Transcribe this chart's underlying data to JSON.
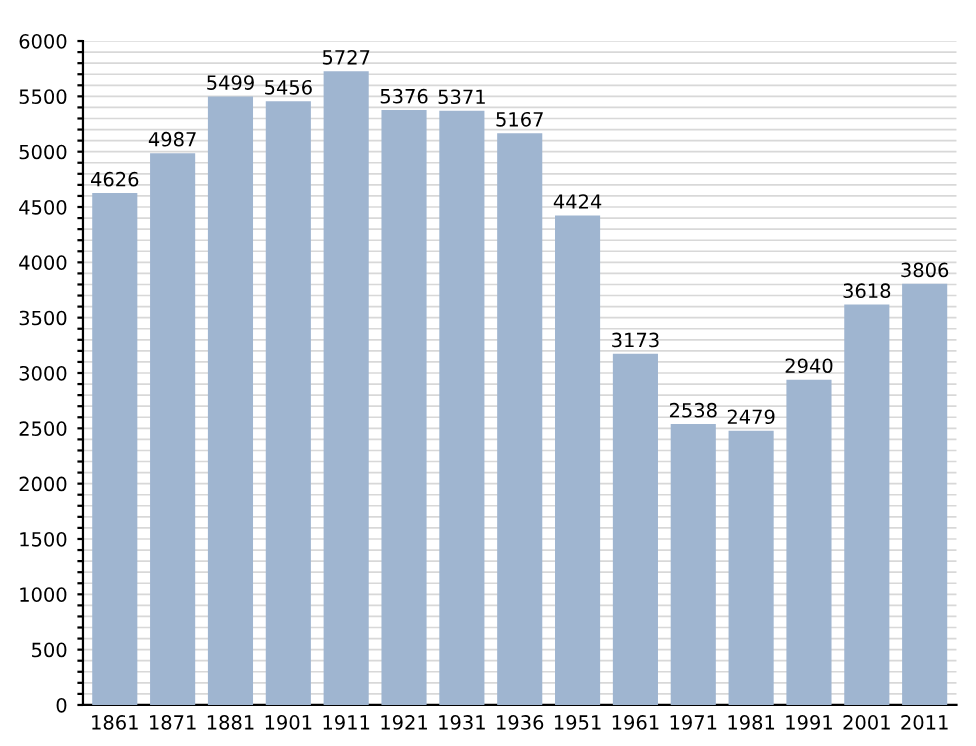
{
  "chart_data": {
    "type": "bar",
    "categories": [
      "1861",
      "1871",
      "1881",
      "1901",
      "1911",
      "1921",
      "1931",
      "1936",
      "1951",
      "1961",
      "1971",
      "1981",
      "1991",
      "2001",
      "2011"
    ],
    "values": [
      4626,
      4987,
      5499,
      5456,
      5727,
      5376,
      5371,
      5167,
      4424,
      3173,
      2538,
      2479,
      2940,
      3618,
      3806
    ],
    "color": "#9fb5d0",
    "data_labels": true,
    "grid": "y",
    "ylim": [
      0,
      6000
    ],
    "yticks": [
      0,
      {
        "value": 100,
        "label": null
      },
      {
        "value": 200,
        "label": null
      },
      {
        "value": 300,
        "label": null
      },
      {
        "value": 400,
        "label": null
      },
      500,
      {
        "value": 600,
        "label": null
      },
      {
        "value": 700,
        "label": null
      },
      {
        "value": 800,
        "label": null
      },
      {
        "value": 900,
        "label": null
      },
      1000,
      {
        "value": 1100,
        "label": null
      },
      {
        "value": 1200,
        "label": null
      },
      {
        "value": 1300,
        "label": null
      },
      {
        "value": 1400,
        "label": null
      },
      1500,
      {
        "value": 1600,
        "label": null
      },
      {
        "value": 1700,
        "label": null
      },
      {
        "value": 1800,
        "label": null
      },
      {
        "value": 1900,
        "label": null
      },
      2000,
      {
        "value": 2100,
        "label": null
      },
      {
        "value": 2200,
        "label": null
      },
      {
        "value": 2300,
        "label": null
      },
      {
        "value": 2400,
        "label": null
      },
      2500,
      {
        "value": 2600,
        "label": null
      },
      {
        "value": 2700,
        "label": null
      },
      {
        "value": 2800,
        "label": null
      },
      {
        "value": 2900,
        "label": null
      },
      3000,
      {
        "value": 3100,
        "label": null
      },
      {
        "value": 3200,
        "label": null
      },
      {
        "value": 3300,
        "label": null
      },
      {
        "value": 3400,
        "label": null
      },
      3500,
      {
        "value": 3600,
        "label": null
      },
      {
        "value": 3700,
        "label": null
      },
      {
        "value": 3800,
        "label": null
      },
      {
        "value": 3900,
        "label": null
      },
      4000,
      {
        "value": 4100,
        "label": null
      },
      {
        "value": 4200,
        "label": null
      },
      {
        "value": 4300,
        "label": null
      },
      {
        "value": 4400,
        "label": null
      },
      4500,
      {
        "value": 4600,
        "label": null
      },
      {
        "value": 4700,
        "label": null
      },
      {
        "value": 4800,
        "label": null
      },
      {
        "value": 4900,
        "label": null
      },
      5000,
      {
        "value": 5100,
        "label": null
      },
      {
        "value": 5200,
        "label": null
      },
      {
        "value": 5300,
        "label": null
      },
      {
        "value": 5400,
        "label": null
      },
      5500,
      {
        "value": 5600,
        "label": null
      },
      {
        "value": 5700,
        "label": null
      },
      {
        "value": 5800,
        "label": null
      },
      {
        "value": 5900,
        "label": null
      },
      6000
    ]
  }
}
